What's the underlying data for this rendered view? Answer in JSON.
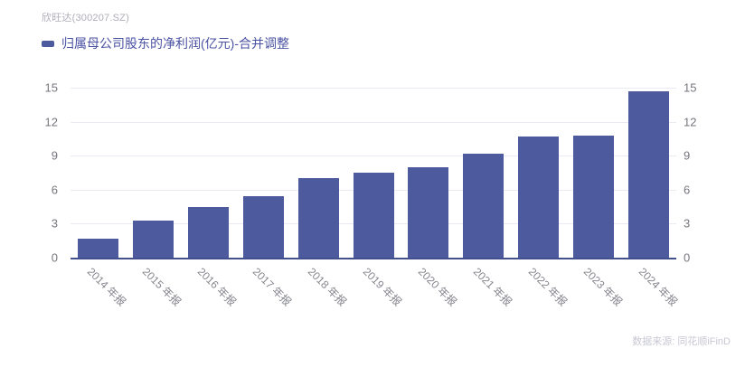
{
  "header": {
    "title": "欣旺达(300207.SZ)"
  },
  "legend": {
    "label": "归属母公司股东的净利润(亿元)-合并调整",
    "swatch_color": "#4d5a9e"
  },
  "chart_data": {
    "type": "bar",
    "title": "归属母公司股东的净利润(亿元)-合并调整",
    "categories": [
      "2014 年报",
      "2015 年报",
      "2016 年报",
      "2017 年报",
      "2018 年报",
      "2019 年报",
      "2020 年报",
      "2021 年报",
      "2022 年报",
      "2023 年报",
      "2024 年报"
    ],
    "values": [
      1.7,
      3.3,
      4.5,
      5.4,
      7.0,
      7.5,
      8.0,
      9.2,
      10.7,
      10.8,
      14.7
    ],
    "xlabel": "",
    "ylabel": "",
    "ylim": [
      0,
      15
    ],
    "yticks": [
      0,
      3,
      6,
      9,
      12,
      15
    ],
    "dual_y_axis": true,
    "grid": true,
    "legend_position": "top-left",
    "bar_color": "#4d5a9e",
    "gridline_color": "#e8eaf4",
    "axis_line_color": "#42508e"
  },
  "footer": {
    "source": "数据来源: 同花顺iFinD"
  }
}
